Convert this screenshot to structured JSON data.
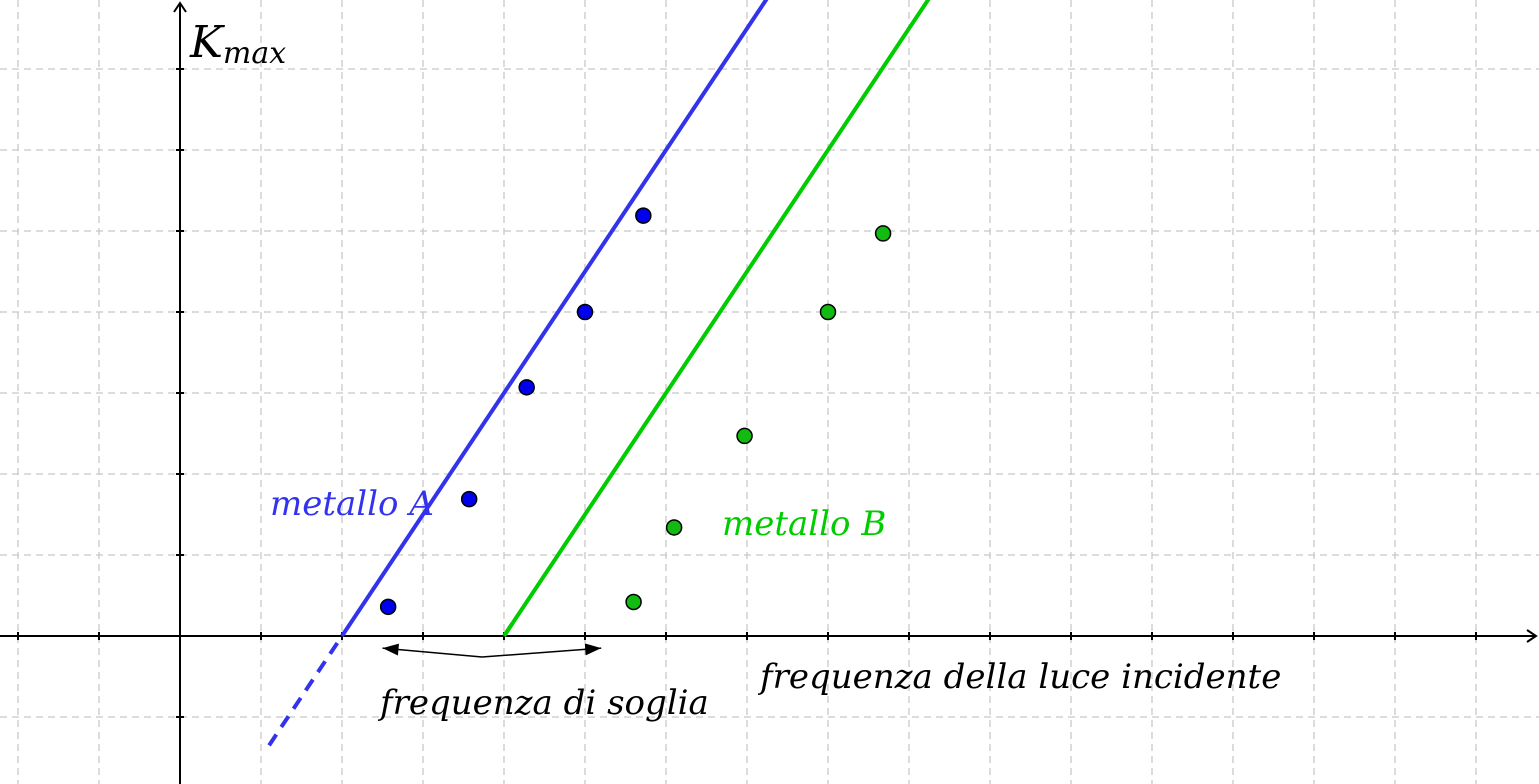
{
  "chart_data": {
    "type": "scatter",
    "title": "",
    "xlabel": "frequenza della luce incidente",
    "ylabel": {
      "main": "K",
      "subscript": "max"
    },
    "xlim": [
      -2.2,
      16.8
    ],
    "ylim": [
      -1.8,
      7.8
    ],
    "grid": true,
    "x_tick_labels_shown": false,
    "y_tick_labels_shown": false,
    "series": [
      {
        "name": "metallo A",
        "color": "#3333ee",
        "point_color": "#0000ee",
        "fit": {
          "slope": 1.5,
          "intercept": -3.0,
          "x_range": [
            1.1,
            7.6
          ]
        },
        "points": [
          {
            "x": 2.57,
            "y": 0.36
          },
          {
            "x": 3.57,
            "y": 1.69
          },
          {
            "x": 4.28,
            "y": 3.07
          },
          {
            "x": 5.0,
            "y": 4.0
          },
          {
            "x": 5.72,
            "y": 5.19
          }
        ]
      },
      {
        "name": "metallo B",
        "color": "#00cc00",
        "point_color": "#11bb11",
        "fit": {
          "slope": 1.5,
          "intercept": -6.0,
          "x_range": [
            4.1,
            11.6
          ]
        },
        "points": [
          {
            "x": 5.6,
            "y": 0.42
          },
          {
            "x": 6.1,
            "y": 1.34
          },
          {
            "x": 6.97,
            "y": 2.47
          },
          {
            "x": 8.0,
            "y": 4.0
          },
          {
            "x": 8.68,
            "y": 4.97
          }
        ]
      }
    ],
    "annotation": {
      "text": "frequenza di soglia",
      "arrow_targets": [
        {
          "x": 2.5,
          "y": -0.15
        },
        {
          "x": 5.2,
          "y": -0.15
        }
      ]
    }
  }
}
